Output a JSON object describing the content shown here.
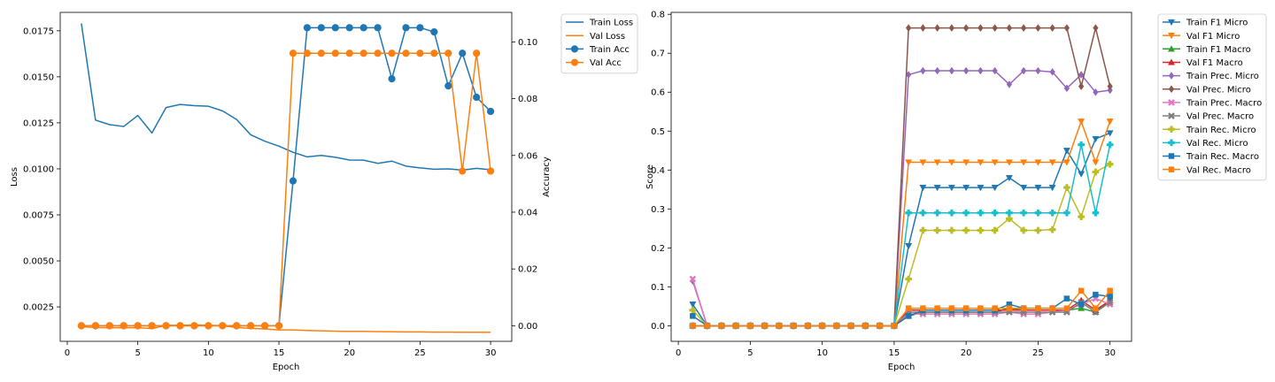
{
  "chart_data": [
    {
      "type": "line",
      "title": "",
      "xlabel": "Epoch",
      "ylabel": "Loss",
      "y2label": "Accuracy",
      "xlim": [
        -0.5,
        31.5
      ],
      "ylim": [
        0.00063,
        0.0185
      ],
      "y2lim": [
        -0.0055,
        0.1104
      ],
      "x_ticks": [
        0,
        5,
        10,
        15,
        20,
        25,
        30
      ],
      "y_ticks": [
        "0.0025",
        "0.0050",
        "0.0075",
        "0.0100",
        "0.0125",
        "0.0150",
        "0.0175"
      ],
      "y_tick_values": [
        0.0025,
        0.005,
        0.0075,
        0.01,
        0.0125,
        0.015,
        0.0175
      ],
      "y2_ticks": [
        "0.00",
        "0.02",
        "0.04",
        "0.06",
        "0.08",
        "0.10"
      ],
      "y2_tick_values": [
        0,
        0.02,
        0.04,
        0.06,
        0.08,
        0.1
      ],
      "x": [
        1,
        2,
        3,
        4,
        5,
        6,
        7,
        8,
        9,
        10,
        11,
        12,
        13,
        14,
        15,
        16,
        17,
        18,
        19,
        20,
        21,
        22,
        23,
        24,
        25,
        26,
        27,
        28,
        29,
        30
      ],
      "series": [
        {
          "name": "Train Loss",
          "axis": "left",
          "color": "#1f77b4",
          "marker": "none",
          "values": [
            0.0179,
            0.01265,
            0.0124,
            0.0123,
            0.0129,
            0.01195,
            0.01333,
            0.0135,
            0.01343,
            0.0134,
            0.01315,
            0.01268,
            0.01185,
            0.0115,
            0.01123,
            0.0109,
            0.01065,
            0.01073,
            0.01063,
            0.01048,
            0.01047,
            0.0103,
            0.01042,
            0.01015,
            0.01005,
            0.00998,
            0.01,
            0.00993,
            0.01003,
            0.00995
          ]
        },
        {
          "name": "Val Loss",
          "axis": "left",
          "color": "#ff7f0e",
          "marker": "none",
          "values": [
            0.00142,
            0.00138,
            0.00137,
            0.00137,
            0.00137,
            0.00132,
            0.0015,
            0.0015,
            0.00152,
            0.0015,
            0.00148,
            0.00138,
            0.00133,
            0.0013,
            0.00125,
            0.00125,
            0.00122,
            0.0012,
            0.00118,
            0.00117,
            0.00117,
            0.00116,
            0.00115,
            0.00114,
            0.00114,
            0.00113,
            0.00113,
            0.00112,
            0.00112,
            0.00112
          ]
        },
        {
          "name": "Train Acc",
          "axis": "right",
          "color": "#1f77b4",
          "marker": "circle",
          "values": [
            0,
            0,
            0,
            0,
            0,
            0,
            0,
            0,
            0,
            0,
            0,
            0,
            0,
            0,
            0,
            0.051,
            0.105,
            0.105,
            0.105,
            0.105,
            0.105,
            0.105,
            0.087,
            0.105,
            0.105,
            0.1035,
            0.0845,
            0.096,
            0.0805,
            0.0755
          ]
        },
        {
          "name": "Val Acc",
          "axis": "right",
          "color": "#ff7f0e",
          "marker": "circle",
          "values": [
            0,
            0,
            0,
            0,
            0,
            0,
            0,
            0,
            0,
            0,
            0,
            0,
            0,
            0,
            0,
            0.096,
            0.096,
            0.096,
            0.096,
            0.096,
            0.096,
            0.096,
            0.096,
            0.096,
            0.096,
            0.096,
            0.096,
            0.0545,
            0.096,
            0.0545
          ]
        }
      ],
      "legend": "outside-top-right"
    },
    {
      "type": "line",
      "title": "",
      "xlabel": "Epoch",
      "ylabel": "Score",
      "xlim": [
        -0.5,
        31.5
      ],
      "ylim": [
        -0.04,
        0.805
      ],
      "x_ticks": [
        0,
        5,
        10,
        15,
        20,
        25,
        30
      ],
      "y_ticks": [
        "0.0",
        "0.1",
        "0.2",
        "0.3",
        "0.4",
        "0.5",
        "0.6",
        "0.7",
        "0.8"
      ],
      "y_tick_values": [
        0,
        0.1,
        0.2,
        0.3,
        0.4,
        0.5,
        0.6,
        0.7,
        0.8
      ],
      "x": [
        1,
        2,
        3,
        4,
        5,
        6,
        7,
        8,
        9,
        10,
        11,
        12,
        13,
        14,
        15,
        16,
        17,
        18,
        19,
        20,
        21,
        22,
        23,
        24,
        25,
        26,
        27,
        28,
        29,
        30
      ],
      "series": [
        {
          "name": "Train F1 Micro",
          "color": "#1f77b4",
          "marker": "tri-down",
          "values": [
            0.055,
            0,
            0,
            0,
            0,
            0,
            0,
            0,
            0,
            0,
            0,
            0,
            0,
            0,
            0,
            0.205,
            0.355,
            0.355,
            0.355,
            0.355,
            0.355,
            0.355,
            0.38,
            0.355,
            0.355,
            0.355,
            0.45,
            0.39,
            0.48,
            0.495
          ]
        },
        {
          "name": "Val F1 Micro",
          "color": "#ff7f0e",
          "marker": "tri-down",
          "values": [
            0,
            0,
            0,
            0,
            0,
            0,
            0,
            0,
            0,
            0,
            0,
            0,
            0,
            0,
            0,
            0.42,
            0.42,
            0.42,
            0.42,
            0.42,
            0.42,
            0.42,
            0.42,
            0.42,
            0.42,
            0.42,
            0.42,
            0.525,
            0.42,
            0.525
          ]
        },
        {
          "name": "Train F1 Macro",
          "color": "#2ca02c",
          "marker": "tri-up",
          "values": [
            0,
            0,
            0,
            0,
            0,
            0,
            0,
            0,
            0,
            0,
            0,
            0,
            0,
            0,
            0,
            0.025,
            0.035,
            0.035,
            0.035,
            0.035,
            0.035,
            0.035,
            0.045,
            0.04,
            0.04,
            0.04,
            0.04,
            0.045,
            0.035,
            0.065
          ]
        },
        {
          "name": "Val F1 Macro",
          "color": "#d62728",
          "marker": "tri-up",
          "values": [
            0,
            0,
            0,
            0,
            0,
            0,
            0,
            0,
            0,
            0,
            0,
            0,
            0,
            0,
            0,
            0.04,
            0.04,
            0.04,
            0.04,
            0.04,
            0.04,
            0.04,
            0.04,
            0.04,
            0.04,
            0.04,
            0.04,
            0.065,
            0.04,
            0.065
          ]
        },
        {
          "name": "Train Prec. Micro",
          "color": "#9467bd",
          "marker": "diamond",
          "values": [
            0.115,
            0,
            0,
            0,
            0,
            0,
            0,
            0,
            0,
            0,
            0,
            0,
            0,
            0,
            0,
            0.645,
            0.655,
            0.655,
            0.655,
            0.655,
            0.655,
            0.655,
            0.62,
            0.655,
            0.655,
            0.652,
            0.61,
            0.645,
            0.6,
            0.605
          ]
        },
        {
          "name": "Val Prec. Micro",
          "color": "#8c564b",
          "marker": "diamond",
          "values": [
            0,
            0,
            0,
            0,
            0,
            0,
            0,
            0,
            0,
            0,
            0,
            0,
            0,
            0,
            0,
            0.765,
            0.765,
            0.765,
            0.765,
            0.765,
            0.765,
            0.765,
            0.765,
            0.765,
            0.765,
            0.765,
            0.765,
            0.615,
            0.765,
            0.615
          ]
        },
        {
          "name": "Train Prec. Macro",
          "color": "#e377c2",
          "marker": "x",
          "values": [
            0.12,
            0,
            0,
            0,
            0,
            0,
            0,
            0,
            0,
            0,
            0,
            0,
            0,
            0,
            0,
            0.03,
            0.03,
            0.03,
            0.03,
            0.03,
            0.03,
            0.03,
            0.035,
            0.03,
            0.03,
            0.035,
            0.04,
            0.055,
            0.07,
            0.055
          ]
        },
        {
          "name": "Val Prec. Macro",
          "color": "#7f7f7f",
          "marker": "x",
          "values": [
            0,
            0,
            0,
            0,
            0,
            0,
            0,
            0,
            0,
            0,
            0,
            0,
            0,
            0,
            0,
            0.035,
            0.035,
            0.035,
            0.035,
            0.035,
            0.035,
            0.035,
            0.035,
            0.035,
            0.035,
            0.035,
            0.035,
            0.06,
            0.035,
            0.06
          ]
        },
        {
          "name": "Train Rec. Micro",
          "color": "#bcbd22",
          "marker": "plus",
          "values": [
            0.04,
            0,
            0,
            0,
            0,
            0,
            0,
            0,
            0,
            0,
            0,
            0,
            0,
            0,
            0,
            0.12,
            0.245,
            0.245,
            0.245,
            0.245,
            0.245,
            0.245,
            0.275,
            0.245,
            0.245,
            0.247,
            0.355,
            0.28,
            0.395,
            0.415
          ]
        },
        {
          "name": "Val Rec. Micro",
          "color": "#17becf",
          "marker": "plus",
          "values": [
            0,
            0,
            0,
            0,
            0,
            0,
            0,
            0,
            0,
            0,
            0,
            0,
            0,
            0,
            0,
            0.29,
            0.29,
            0.29,
            0.29,
            0.29,
            0.29,
            0.29,
            0.29,
            0.29,
            0.29,
            0.29,
            0.29,
            0.465,
            0.29,
            0.465
          ]
        },
        {
          "name": "Train Rec. Macro",
          "color": "#1f77b4",
          "marker": "square",
          "values": [
            0.025,
            0,
            0,
            0,
            0,
            0,
            0,
            0,
            0,
            0,
            0,
            0,
            0,
            0,
            0,
            0.025,
            0.04,
            0.04,
            0.04,
            0.04,
            0.04,
            0.04,
            0.055,
            0.045,
            0.045,
            0.045,
            0.07,
            0.055,
            0.08,
            0.075
          ]
        },
        {
          "name": "Val Rec. Macro",
          "color": "#ff7f0e",
          "marker": "square",
          "values": [
            0,
            0,
            0,
            0,
            0,
            0,
            0,
            0,
            0,
            0,
            0,
            0,
            0,
            0,
            0,
            0.045,
            0.045,
            0.045,
            0.045,
            0.045,
            0.045,
            0.045,
            0.045,
            0.045,
            0.045,
            0.045,
            0.045,
            0.09,
            0.045,
            0.09
          ]
        }
      ],
      "legend": "outside-top-right"
    }
  ]
}
